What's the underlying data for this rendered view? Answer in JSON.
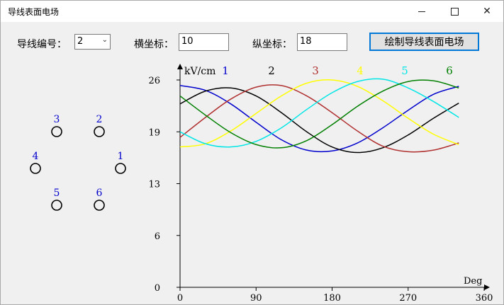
{
  "window": {
    "title": "导线表面电场",
    "minimize_glyph": "—",
    "maximize_glyph": "☐",
    "close_glyph": "✕"
  },
  "controls": {
    "conductor_label": "导线编号：",
    "conductor_value": "2",
    "x_label": "横坐标：",
    "x_value": "10",
    "y_label": "纵坐标：",
    "y_value": "18",
    "draw_button": "绘制导线表面电场"
  },
  "conductors": [
    {
      "id": "1",
      "label": "1"
    },
    {
      "id": "2",
      "label": "2"
    },
    {
      "id": "3",
      "label": "3"
    },
    {
      "id": "4",
      "label": "4"
    },
    {
      "id": "5",
      "label": "5"
    },
    {
      "id": "6",
      "label": "6"
    }
  ],
  "chart_data": {
    "type": "line",
    "ylabel": "kV/cm",
    "xlabel": "Deg",
    "xlim": [
      0,
      360
    ],
    "ylim": [
      0,
      26
    ],
    "x_ticks": [
      "0",
      "90",
      "180",
      "270",
      "360"
    ],
    "y_ticks": [
      "0",
      "6",
      "13",
      "19",
      "26"
    ],
    "x_tick_values": [
      0,
      90,
      180,
      270,
      360
    ],
    "y_tick_values": [
      0,
      6.5,
      13,
      19.5,
      26
    ],
    "grid": false,
    "legend_placement": "top",
    "x": [
      0,
      30,
      60,
      90,
      120,
      150,
      180,
      210,
      240,
      270,
      300,
      330
    ],
    "series": [
      {
        "name": "1",
        "color": "#0000cc",
        "values": [
          25.3,
          24.7,
          23.0,
          20.7,
          18.5,
          17.2,
          17.1,
          18.1,
          20.0,
          22.2,
          24.2,
          25.2
        ]
      },
      {
        "name": "2",
        "color": "#000000",
        "values": [
          23.0,
          24.6,
          25.0,
          24.0,
          21.9,
          19.5,
          17.6,
          16.9,
          17.5,
          19.1,
          21.2,
          23.1
        ]
      },
      {
        "name": "3",
        "color": "#b03030",
        "values": [
          18.8,
          21.3,
          23.6,
          25.1,
          25.3,
          24.0,
          21.9,
          19.6,
          17.7,
          17.0,
          17.2,
          18.1
        ]
      },
      {
        "name": "4",
        "color": "#ffff00",
        "values": [
          17.6,
          18.0,
          19.6,
          21.8,
          24.0,
          25.6,
          26.0,
          25.2,
          23.4,
          21.2,
          19.2,
          17.9
        ]
      },
      {
        "name": "5",
        "color": "#00e6e6",
        "values": [
          19.5,
          18.0,
          17.6,
          18.3,
          20.0,
          22.3,
          24.4,
          25.8,
          26.1,
          25.0,
          23.3,
          21.3
        ]
      },
      {
        "name": "6",
        "color": "#008000",
        "values": [
          24.0,
          21.6,
          19.4,
          17.9,
          17.5,
          18.4,
          20.4,
          22.7,
          24.6,
          25.8,
          25.9,
          25.0
        ]
      }
    ]
  }
}
